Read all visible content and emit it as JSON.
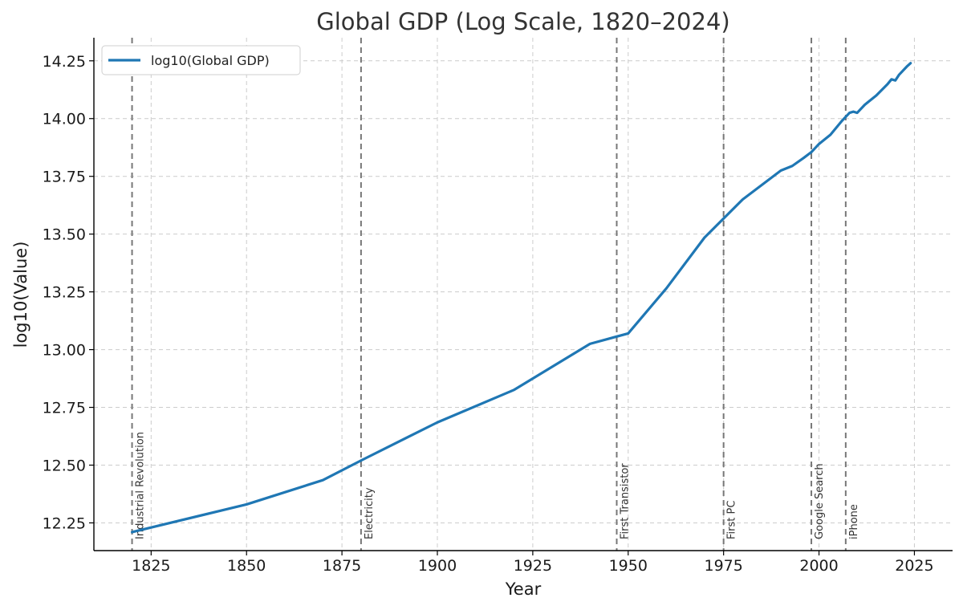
{
  "chart_data": {
    "type": "line",
    "title": "Global GDP (Log Scale, 1820–2024)",
    "xlabel": "Year",
    "ylabel": "log10(Value)",
    "xlim": [
      1810,
      2035
    ],
    "ylim": [
      12.13,
      14.35
    ],
    "grid": true,
    "legend_position": "top-left",
    "x_ticks": [
      1825,
      1850,
      1875,
      1900,
      1925,
      1950,
      1975,
      2000,
      2025
    ],
    "y_ticks": [
      12.25,
      12.5,
      12.75,
      13.0,
      13.25,
      13.5,
      13.75,
      14.0,
      14.25
    ],
    "x_tick_labels": [
      "1825",
      "1850",
      "1875",
      "1900",
      "1925",
      "1950",
      "1975",
      "2000",
      "2025"
    ],
    "y_tick_labels": [
      "12.25",
      "12.50",
      "12.75",
      "13.00",
      "13.25",
      "13.50",
      "13.75",
      "14.00",
      "14.25"
    ],
    "series": [
      {
        "name": "log10(Global GDP)",
        "color": "#1f77b4",
        "x": [
          1820,
          1850,
          1870,
          1880,
          1900,
          1920,
          1940,
          1950,
          1960,
          1970,
          1980,
          1990,
          1993,
          1996,
          1998,
          2000,
          2003,
          2006,
          2008,
          2009,
          2010,
          2012,
          2015,
          2018,
          2019,
          2020,
          2021,
          2023,
          2024
        ],
        "values": [
          12.21,
          12.33,
          12.435,
          12.52,
          12.685,
          12.825,
          13.025,
          13.07,
          13.265,
          13.485,
          13.65,
          13.775,
          13.795,
          13.83,
          13.855,
          13.89,
          13.93,
          13.99,
          14.025,
          14.03,
          14.025,
          14.06,
          14.1,
          14.15,
          14.17,
          14.165,
          14.19,
          14.225,
          14.24
        ]
      }
    ],
    "annotations": [
      {
        "label": "Industrial Revolution",
        "x": 1820
      },
      {
        "label": "Electricity",
        "x": 1880
      },
      {
        "label": "First Transistor",
        "x": 1947
      },
      {
        "label": "First PC",
        "x": 1975
      },
      {
        "label": "Google Search",
        "x": 1998
      },
      {
        "label": "iPhone",
        "x": 2007
      }
    ]
  }
}
